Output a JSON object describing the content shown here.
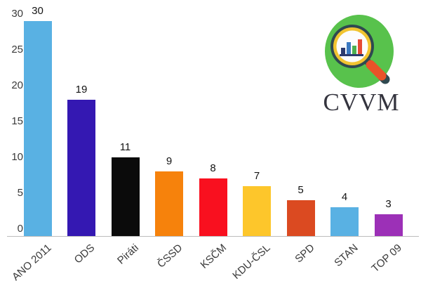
{
  "chart_data": {
    "type": "bar",
    "title": "",
    "xlabel": "",
    "ylabel": "",
    "categories": [
      "ANO 2011",
      "ODS",
      "Piráti",
      "ČSSD",
      "KSČM",
      "KDU-ČSL",
      "SPD",
      "STAN",
      "TOP 09"
    ],
    "values": [
      30,
      19,
      11,
      9,
      8,
      7,
      5,
      4,
      3
    ],
    "bar_colors": [
      "#59B1E3",
      "#3418B2",
      "#0B0B0B",
      "#F6820C",
      "#F9101F",
      "#FDC62B",
      "#DB4A21",
      "#59B1E3",
      "#9C30B7"
    ],
    "ylim": [
      0,
      30
    ],
    "yticks": [
      0,
      5,
      10,
      15,
      20,
      25,
      30
    ],
    "grid": false,
    "legend": "none",
    "axis_line_color": "#BDBDBD",
    "tick_label_color": "#3A3A3A",
    "value_label_color": "#141414",
    "category_label_color": "#3A3A3A"
  },
  "logo": {
    "text": "CVVM",
    "text_color": "#34343E",
    "icon": "magnifier-bar-chart-icon",
    "colors": {
      "circle_green": "#58C24C",
      "ring_dark": "#2F4950",
      "ring_yellow": "#F1C431",
      "lens_white": "#FCFCFE",
      "handle_red": "#E95329",
      "mini_navy": "#2C3A6E",
      "mini_blue": "#3B79C2",
      "mini_green": "#4CAF50",
      "mini_red": "#E64A35"
    }
  }
}
